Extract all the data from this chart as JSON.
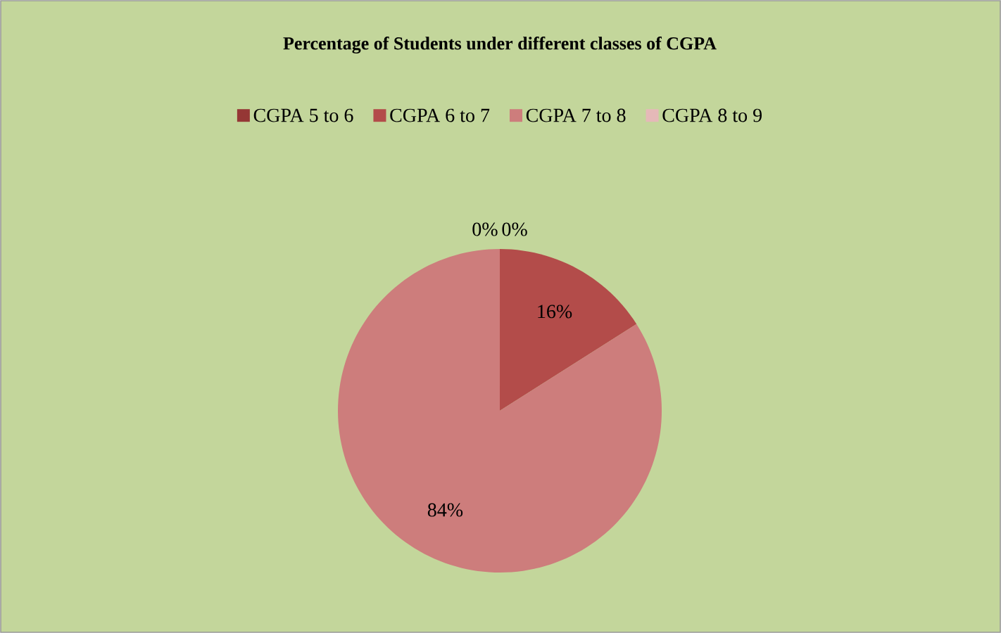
{
  "chart_data": {
    "type": "pie",
    "title": "Percentage of Students under different  classes of CGPA",
    "categories": [
      "CGPA 5 to 6",
      "CGPA 6 to 7",
      "CGPA 7 to 8",
      "CGPA 8 to 9"
    ],
    "values": [
      0,
      16,
      84,
      0
    ],
    "colors": [
      "#953735",
      "#b34c4a",
      "#cd7d7c",
      "#e5b9b8"
    ],
    "value_labels": [
      "0%",
      "16%",
      "84%",
      "0%"
    ],
    "legend": "top"
  }
}
